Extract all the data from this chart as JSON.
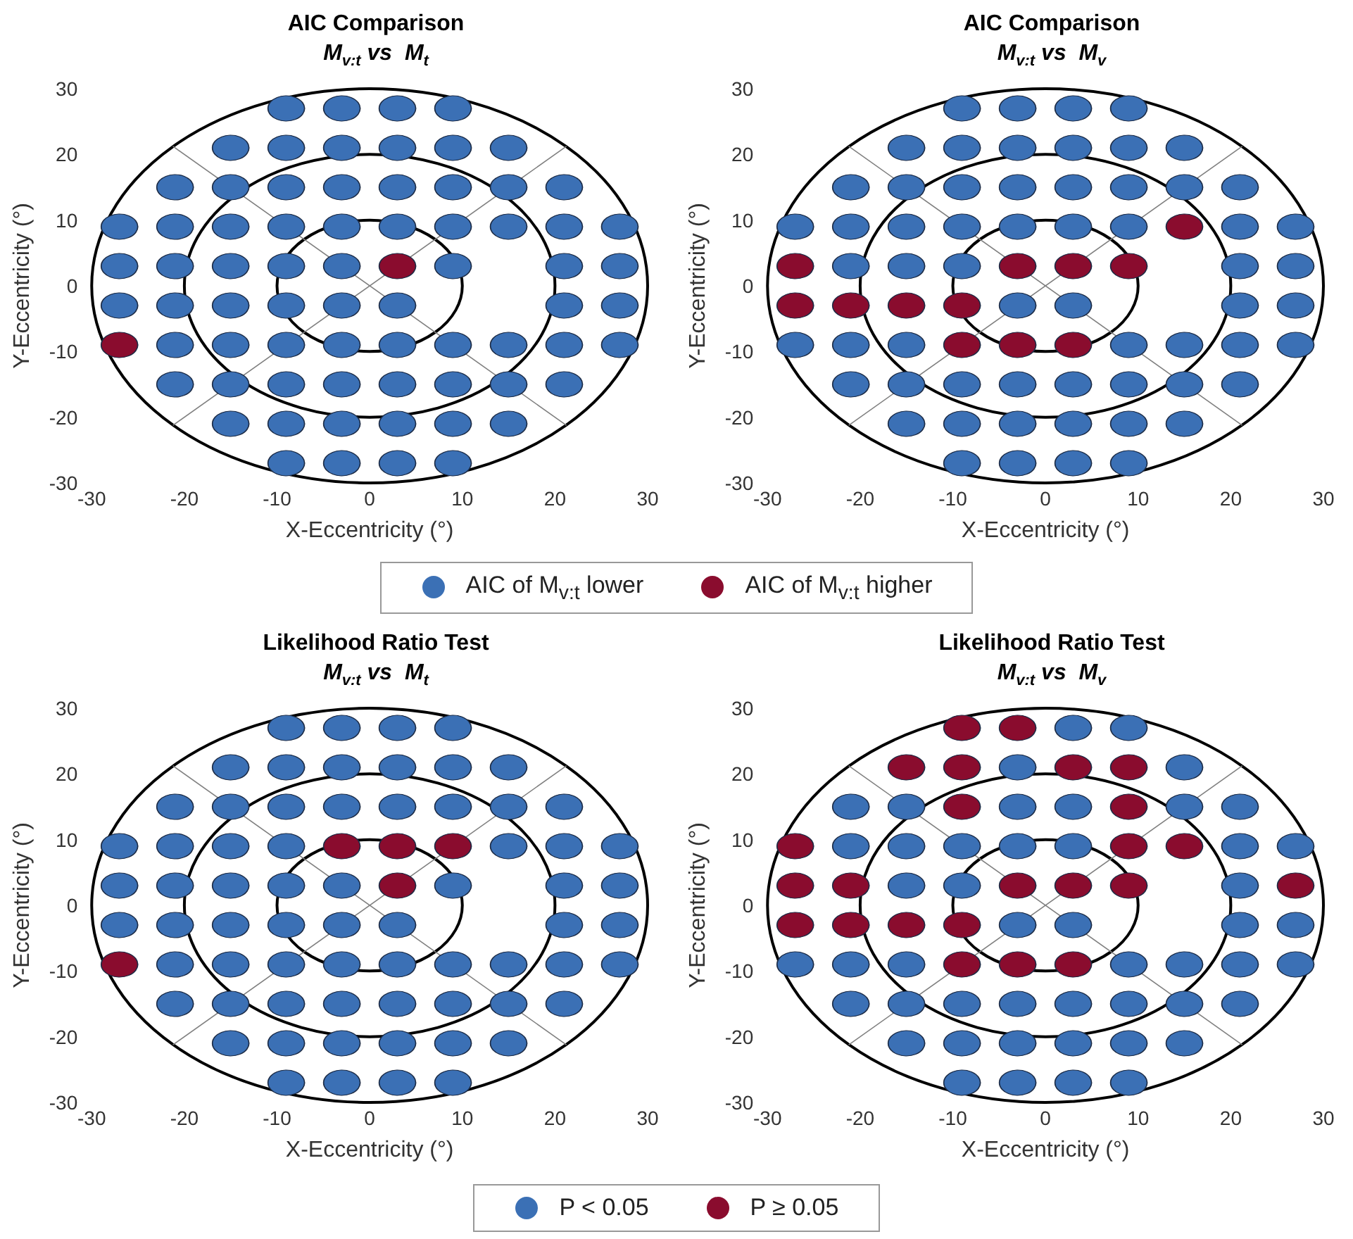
{
  "chart_data": [
    {
      "type": "scatter",
      "title": "AIC Comparison",
      "subtitle": "M$_{v:t}$ vs  M$_{t}$",
      "xlabel": "X-Eccentricity (°)",
      "ylabel": "Y-Eccentricity (°)",
      "xlim": [
        -30,
        30
      ],
      "ylim": [
        -30,
        30
      ],
      "xticks": [
        -30,
        -20,
        -10,
        0,
        10,
        20,
        30
      ],
      "yticks": [
        -30,
        -20,
        -10,
        0,
        10,
        20,
        30
      ],
      "grid": false,
      "legend": "bottom",
      "marker": "circle",
      "series": [
        {
          "type": "line",
          "color": "#808080",
          "marker": "none",
          "line_style": "solid",
          "x": [
            -21.2,
            21.2
          ],
          "values": [
            -21.2,
            21.2
          ]
        },
        {
          "type": "line",
          "color": "#808080",
          "marker": "none",
          "line_style": "solid",
          "x": [
            -21.2,
            21.2
          ],
          "values": [
            21.2,
            -21.2
          ]
        },
        {
          "name": "AIC of M$_{v:t}$ lower",
          "color": "#3b70b5",
          "x": [
            -9,
            -3,
            3,
            9,
            -15,
            -9,
            -3,
            3,
            9,
            15,
            -21,
            -15,
            -9,
            -3,
            3,
            9,
            15,
            21,
            -27,
            -21,
            -15,
            -9,
            -3,
            3,
            9,
            15,
            21,
            27,
            -27,
            -21,
            -15,
            -9,
            -3,
            9,
            21,
            27,
            -27,
            -21,
            -15,
            -9,
            -3,
            3,
            21,
            27,
            -21,
            -15,
            -9,
            -3,
            3,
            9,
            15,
            21,
            27,
            -21,
            -15,
            -9,
            -3,
            3,
            9,
            15,
            21,
            -15,
            -9,
            -3,
            3,
            9,
            15,
            -9,
            -3,
            3,
            9
          ],
          "values": [
            27,
            27,
            27,
            27,
            21,
            21,
            21,
            21,
            21,
            21,
            15,
            15,
            15,
            15,
            15,
            15,
            15,
            15,
            9,
            9,
            9,
            9,
            9,
            9,
            9,
            9,
            9,
            9,
            3,
            3,
            3,
            3,
            3,
            3,
            3,
            3,
            -3,
            -3,
            -3,
            -3,
            -3,
            -3,
            -3,
            -3,
            -9,
            -9,
            -9,
            -9,
            -9,
            -9,
            -9,
            -9,
            -9,
            -15,
            -15,
            -15,
            -15,
            -15,
            -15,
            -15,
            -15,
            -21,
            -21,
            -21,
            -21,
            -21,
            -21,
            -27,
            -27,
            -27,
            -27
          ]
        },
        {
          "name": "AIC of M$_{v:t}$ higher",
          "color": "#8a0c2e",
          "x": [
            3,
            -27
          ],
          "values": [
            3,
            -9
          ]
        }
      ]
    },
    {
      "type": "scatter",
      "title": "AIC Comparison",
      "subtitle": "M$_{v:t}$ vs  M$_{v}$",
      "xlabel": "X-Eccentricity (°)",
      "ylabel": "Y-Eccentricity (°)",
      "xlim": [
        -30,
        30
      ],
      "ylim": [
        -30,
        30
      ],
      "xticks": [
        -30,
        -20,
        -10,
        0,
        10,
        20,
        30
      ],
      "yticks": [
        -30,
        -20,
        -10,
        0,
        10,
        20,
        30
      ],
      "grid": false,
      "marker": "circle",
      "series": [
        {
          "type": "line",
          "color": "#808080",
          "marker": "none",
          "line_style": "solid",
          "x": [
            -21.2,
            21.2
          ],
          "values": [
            -21.2,
            21.2
          ]
        },
        {
          "type": "line",
          "color": "#808080",
          "marker": "none",
          "line_style": "solid",
          "x": [
            -21.2,
            21.2
          ],
          "values": [
            21.2,
            -21.2
          ]
        },
        {
          "color": "#3b70b5",
          "x": [
            -9,
            -3,
            3,
            9,
            -15,
            -9,
            -3,
            3,
            9,
            15,
            -21,
            -15,
            -9,
            -3,
            3,
            9,
            15,
            21,
            -27,
            -21,
            -15,
            -9,
            -3,
            3,
            9,
            21,
            27,
            -21,
            -15,
            -9,
            21,
            27,
            -3,
            3,
            21,
            27,
            -27,
            -21,
            -15,
            9,
            15,
            21,
            27,
            -21,
            -15,
            -9,
            -3,
            3,
            9,
            15,
            21,
            -15,
            -9,
            -3,
            3,
            9,
            15,
            -9,
            -3,
            3,
            9
          ],
          "values": [
            27,
            27,
            27,
            27,
            21,
            21,
            21,
            21,
            21,
            21,
            15,
            15,
            15,
            15,
            15,
            15,
            15,
            15,
            9,
            9,
            9,
            9,
            9,
            9,
            9,
            9,
            9,
            3,
            3,
            3,
            3,
            3,
            -3,
            -3,
            -3,
            -3,
            -9,
            -9,
            -9,
            -9,
            -9,
            -9,
            -9,
            -15,
            -15,
            -15,
            -15,
            -15,
            -15,
            -15,
            -15,
            -21,
            -21,
            -21,
            -21,
            -21,
            -21,
            -27,
            -27,
            -27,
            -27
          ]
        },
        {
          "color": "#8a0c2e",
          "x": [
            15,
            -27,
            -3,
            3,
            9,
            -27,
            -21,
            -15,
            -9,
            -9,
            -3,
            3
          ],
          "values": [
            9,
            3,
            3,
            3,
            3,
            -3,
            -3,
            -3,
            -3,
            -9,
            -9,
            -9
          ]
        }
      ]
    },
    {
      "type": "scatter",
      "title": "Likelihood Ratio Test",
      "subtitle": "M$_{v:t}$ vs  M$_{t}$",
      "xlabel": "X-Eccentricity (°)",
      "ylabel": "Y-Eccentricity (°)",
      "xlim": [
        -30,
        30
      ],
      "ylim": [
        -30,
        30
      ],
      "xticks": [
        -30,
        -20,
        -10,
        0,
        10,
        20,
        30
      ],
      "yticks": [
        -30,
        -20,
        -10,
        0,
        10,
        20,
        30
      ],
      "grid": false,
      "legend": "bottom",
      "marker": "circle",
      "series": [
        {
          "type": "line",
          "color": "#808080",
          "marker": "none",
          "line_style": "solid",
          "x": [
            -21.2,
            21.2
          ],
          "values": [
            -21.2,
            21.2
          ]
        },
        {
          "type": "line",
          "color": "#808080",
          "marker": "none",
          "line_style": "solid",
          "x": [
            -21.2,
            21.2
          ],
          "values": [
            21.2,
            -21.2
          ]
        },
        {
          "name": "P < 0.05",
          "color": "#3b70b5",
          "x": [
            -9,
            -3,
            3,
            9,
            -15,
            -9,
            -3,
            3,
            9,
            15,
            -21,
            -15,
            -9,
            -3,
            3,
            9,
            15,
            21,
            -27,
            -21,
            -15,
            -9,
            15,
            21,
            27,
            -27,
            -21,
            -15,
            -9,
            -3,
            9,
            21,
            27,
            -27,
            -21,
            -15,
            -9,
            -3,
            3,
            21,
            27,
            -21,
            -15,
            -9,
            -3,
            3,
            9,
            15,
            21,
            27,
            -21,
            -15,
            -9,
            -3,
            3,
            9,
            15,
            21,
            -15,
            -9,
            -3,
            3,
            9,
            15,
            -9,
            -3,
            3,
            9
          ],
          "values": [
            27,
            27,
            27,
            27,
            21,
            21,
            21,
            21,
            21,
            21,
            15,
            15,
            15,
            15,
            15,
            15,
            15,
            15,
            9,
            9,
            9,
            9,
            9,
            9,
            9,
            3,
            3,
            3,
            3,
            3,
            3,
            3,
            3,
            -3,
            -3,
            -3,
            -3,
            -3,
            -3,
            -3,
            -3,
            -9,
            -9,
            -9,
            -9,
            -9,
            -9,
            -9,
            -9,
            -9,
            -15,
            -15,
            -15,
            -15,
            -15,
            -15,
            -15,
            -15,
            -21,
            -21,
            -21,
            -21,
            -21,
            -21,
            -27,
            -27,
            -27,
            -27
          ]
        },
        {
          "name": "P ≥ 0.05",
          "color": "#8a0c2e",
          "x": [
            -3,
            3,
            9,
            3,
            -27
          ],
          "values": [
            9,
            9,
            9,
            3,
            -9
          ]
        }
      ]
    },
    {
      "type": "scatter",
      "title": "Likelihood Ratio Test",
      "subtitle": "M$_{v:t}$ vs  M$_{v}$",
      "xlabel": "X-Eccentricity (°)",
      "ylabel": "Y-Eccentricity (°)",
      "xlim": [
        -30,
        30
      ],
      "ylim": [
        -30,
        30
      ],
      "xticks": [
        -30,
        -20,
        -10,
        0,
        10,
        20,
        30
      ],
      "yticks": [
        -30,
        -20,
        -10,
        0,
        10,
        20,
        30
      ],
      "grid": false,
      "marker": "circle",
      "series": [
        {
          "type": "line",
          "color": "#808080",
          "marker": "none",
          "line_style": "solid",
          "x": [
            -21.2,
            21.2
          ],
          "values": [
            -21.2,
            21.2
          ]
        },
        {
          "type": "line",
          "color": "#808080",
          "marker": "none",
          "line_style": "solid",
          "x": [
            -21.2,
            21.2
          ],
          "values": [
            21.2,
            -21.2
          ]
        },
        {
          "color": "#3b70b5",
          "x": [
            3,
            9,
            -3,
            15,
            -21,
            -15,
            -3,
            3,
            15,
            21,
            -21,
            -15,
            -9,
            -3,
            3,
            21,
            27,
            -15,
            -9,
            21,
            -3,
            3,
            21,
            27,
            -27,
            -21,
            -15,
            9,
            15,
            21,
            27,
            -21,
            -15,
            -9,
            -3,
            3,
            9,
            15,
            21,
            -15,
            -9,
            -3,
            3,
            9,
            15,
            -9,
            -3,
            3,
            9
          ],
          "values": [
            27,
            27,
            21,
            21,
            15,
            15,
            15,
            15,
            15,
            15,
            9,
            9,
            9,
            9,
            9,
            9,
            9,
            3,
            3,
            3,
            -3,
            -3,
            -3,
            -3,
            -9,
            -9,
            -9,
            -9,
            -9,
            -9,
            -9,
            -15,
            -15,
            -15,
            -15,
            -15,
            -15,
            -15,
            -15,
            -21,
            -21,
            -21,
            -21,
            -21,
            -21,
            -27,
            -27,
            -27,
            -27
          ]
        },
        {
          "color": "#8a0c2e",
          "x": [
            -9,
            -3,
            -15,
            -9,
            3,
            9,
            -9,
            9,
            -27,
            9,
            15,
            -27,
            -21,
            -3,
            3,
            9,
            27,
            -27,
            -21,
            -15,
            -9,
            -9,
            -3,
            3
          ],
          "values": [
            27,
            27,
            21,
            21,
            21,
            21,
            15,
            15,
            9,
            9,
            9,
            3,
            3,
            3,
            3,
            3,
            3,
            -3,
            -3,
            -3,
            -3,
            -9,
            -9,
            -9
          ]
        }
      ]
    }
  ]
}
